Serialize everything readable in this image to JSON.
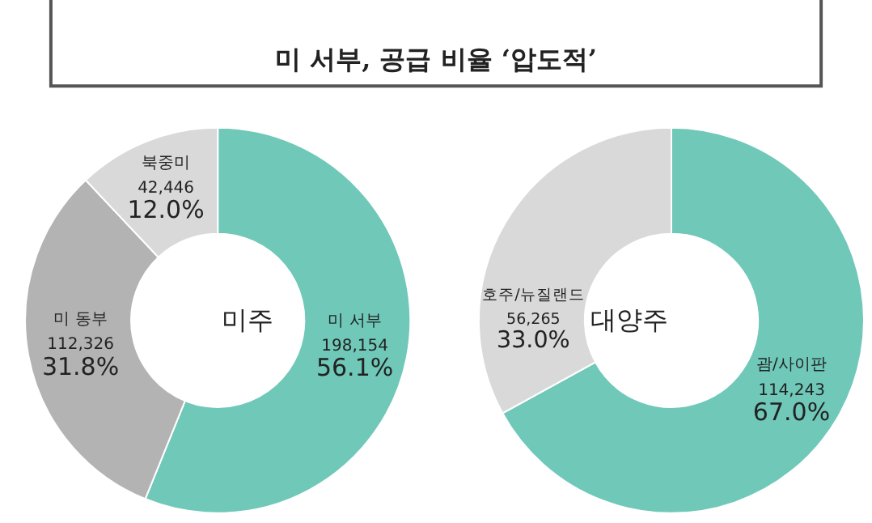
{
  "chart_data": [
    {
      "type": "donut",
      "title": "미 서부, 공급 비율 ‘압도적’",
      "annotations": [
        "미주"
      ],
      "categories": [
        "미 서부",
        "미 동부",
        "북중미"
      ],
      "values": [
        198154,
        112326,
        42446
      ],
      "value_labels": [
        "198,154\n56.1%",
        "112,326\n31.8%",
        "42,446\n12.0%"
      ],
      "colors": [
        "#6fc8b8",
        "#b3b3b3",
        "#d9d9d9"
      ],
      "legend": false
    },
    {
      "type": "donut",
      "annotations": [
        "대양주"
      ],
      "categories": [
        "괌/사이판",
        "호주/뉴질랜드"
      ],
      "values": [
        114243,
        56265
      ],
      "value_labels": [
        "114,243\n67.0%",
        "56,265\n33.0%"
      ],
      "colors": [
        "#6fc8b8",
        "#d9d9d9"
      ],
      "legend": false
    }
  ]
}
